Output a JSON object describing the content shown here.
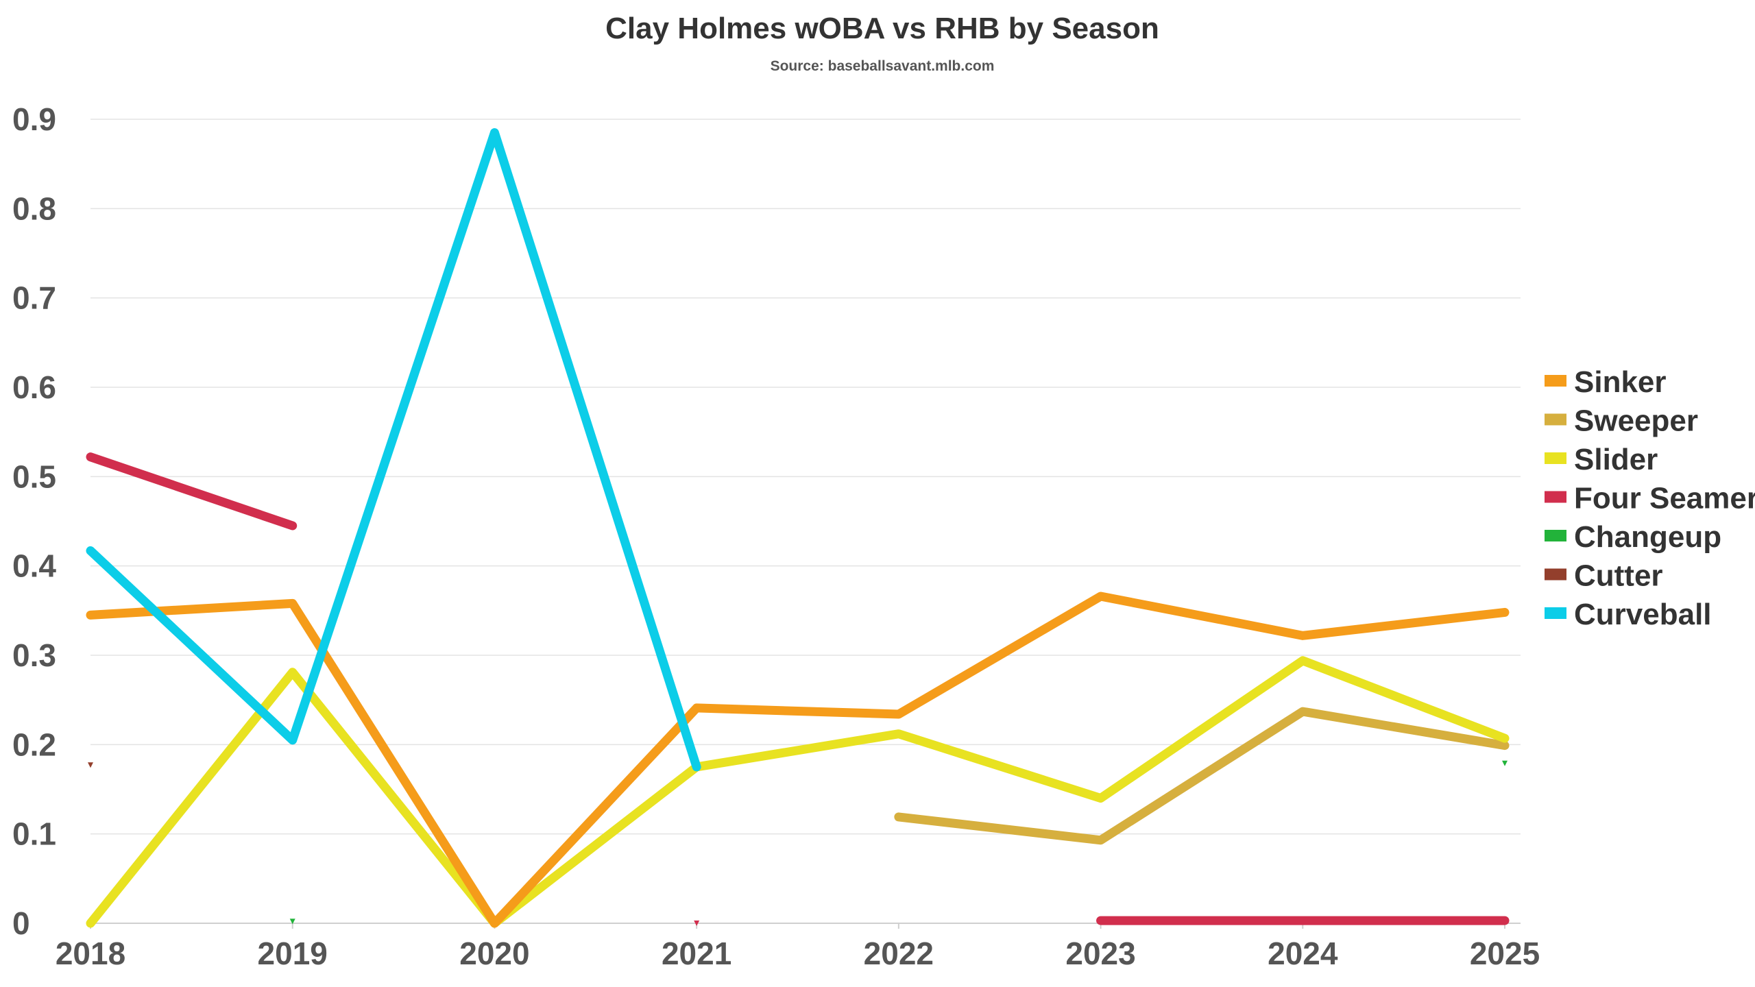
{
  "chart_data": {
    "type": "line",
    "title": "Clay Holmes wOBA vs RHB by Season",
    "subtitle": "Source: baseballsavant.mlb.com",
    "xlabel": "",
    "ylabel": "",
    "x": [
      2018,
      2019,
      2020,
      2021,
      2022,
      2023,
      2024,
      2025
    ],
    "x_tick_labels": [
      "2018",
      "2019",
      "2020",
      "2021",
      "2022",
      "2023",
      "2024",
      "2025"
    ],
    "y_ticks": [
      0,
      0.1,
      0.2,
      0.3,
      0.4,
      0.5,
      0.6,
      0.7,
      0.8,
      0.9
    ],
    "y_tick_labels": [
      "0",
      "0.1",
      "0.2",
      "0.3",
      "0.4",
      "0.5",
      "0.6",
      "0.7",
      "0.8",
      "0.9"
    ],
    "ylim": [
      0,
      0.9
    ],
    "grid": true,
    "legend_position": "right",
    "series": [
      {
        "name": "Sinker",
        "color": "#F59C1A",
        "values": [
          0.345,
          0.358,
          0.0,
          0.241,
          0.234,
          0.366,
          0.322,
          0.348
        ]
      },
      {
        "name": "Sweeper",
        "color": "#D6AF3E",
        "values": [
          null,
          null,
          null,
          null,
          0.119,
          0.093,
          0.237,
          0.199
        ]
      },
      {
        "name": "Slider",
        "color": "#E8E221",
        "values": [
          0.0,
          0.281,
          0.0,
          0.175,
          0.212,
          0.14,
          0.294,
          0.207
        ]
      },
      {
        "name": "Four Seamer",
        "color": "#D12E4D",
        "values": [
          0.522,
          0.445,
          null,
          0.0,
          null,
          0.003,
          0.003,
          0.003
        ]
      },
      {
        "name": "Changeup",
        "color": "#22B33A",
        "values": [
          null,
          0.002,
          null,
          null,
          null,
          null,
          null,
          0.179
        ]
      },
      {
        "name": "Cutter",
        "color": "#933F2C",
        "values": [
          0.177,
          null,
          null,
          null,
          null,
          null,
          null,
          null
        ]
      },
      {
        "name": "Curveball",
        "color": "#0CCDE8",
        "values": [
          0.417,
          0.205,
          0.885,
          0.175,
          null,
          null,
          null,
          null
        ]
      }
    ]
  }
}
